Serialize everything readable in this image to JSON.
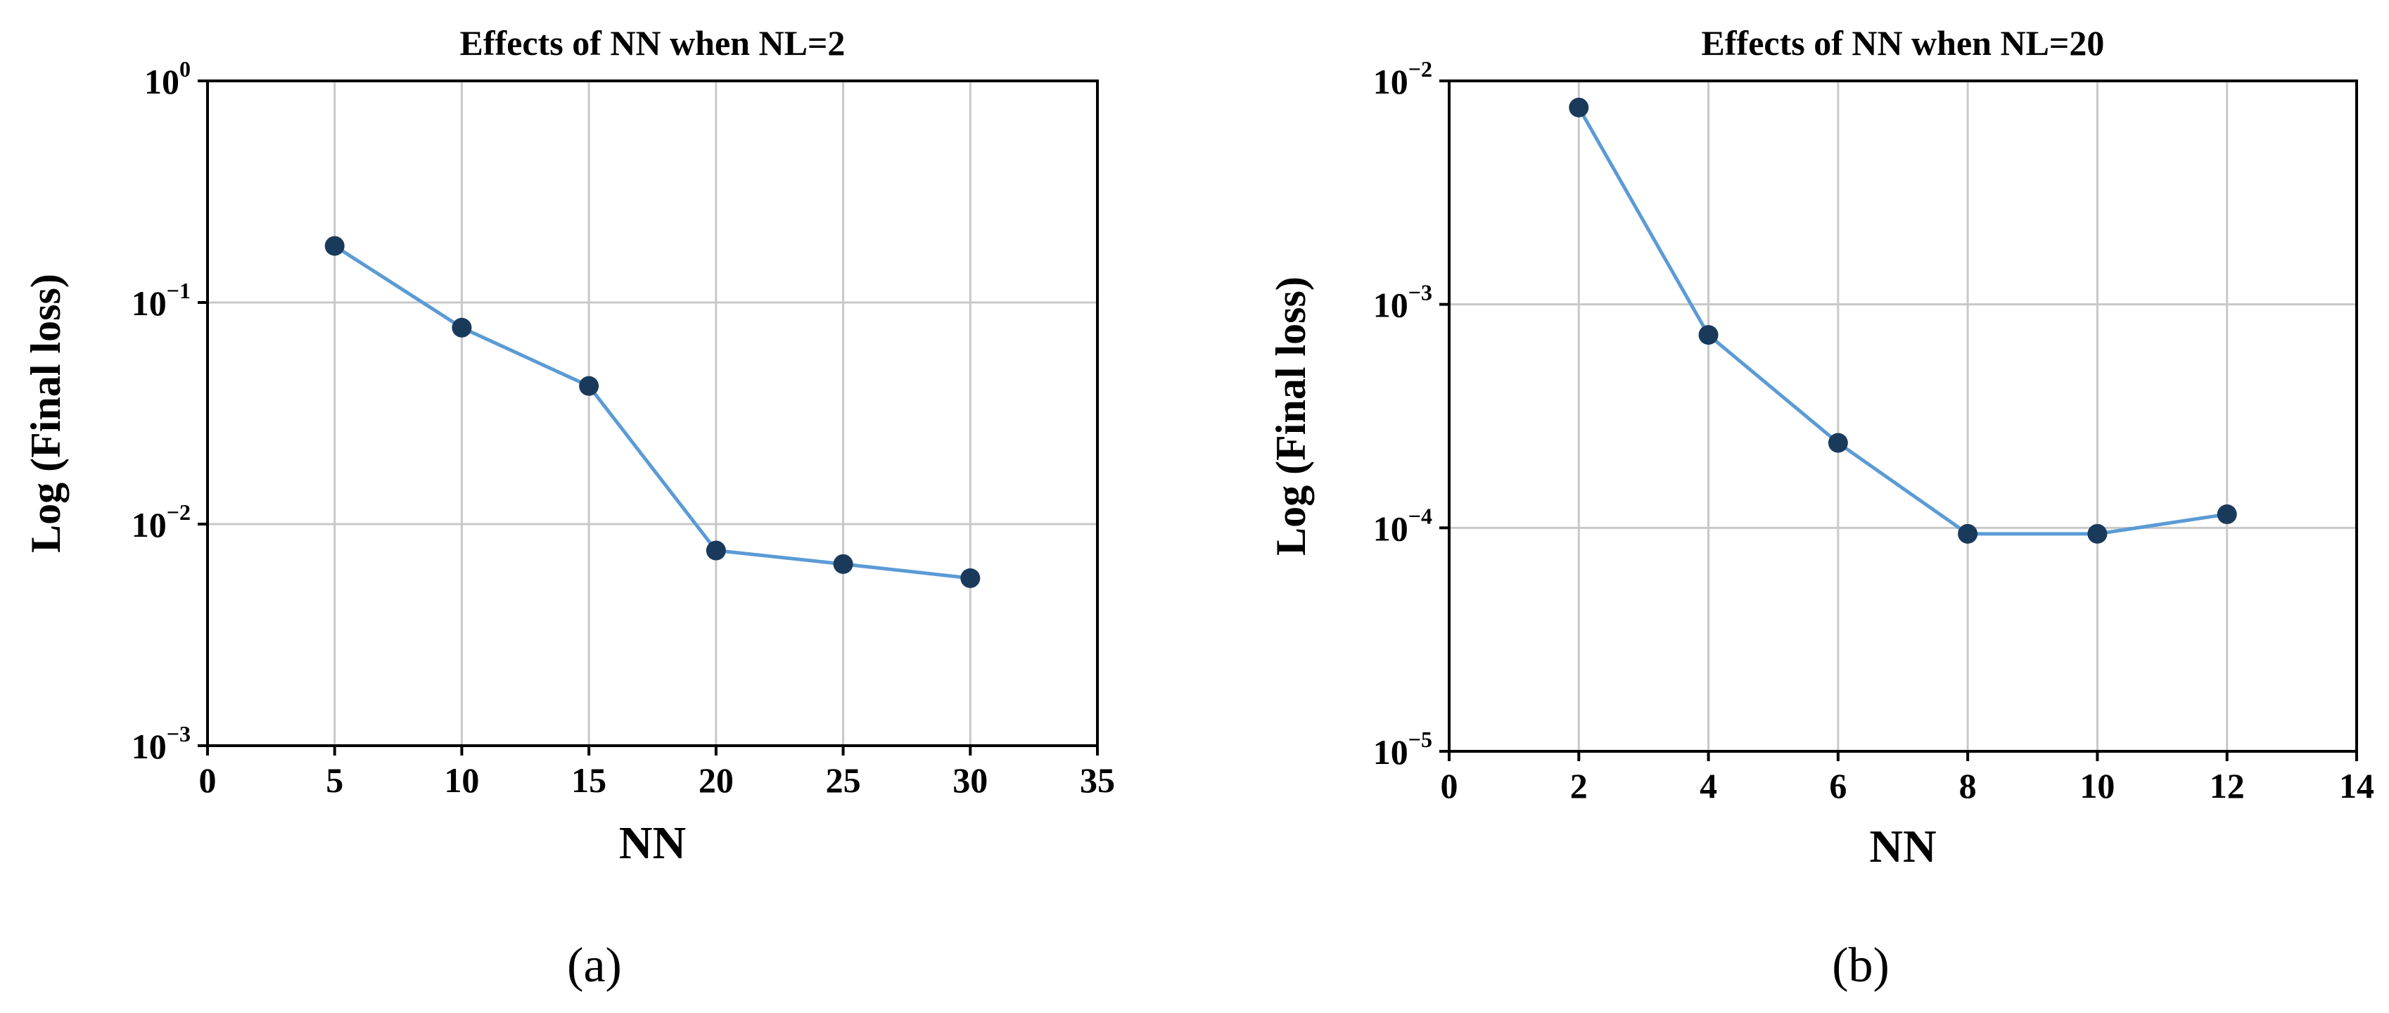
{
  "chart_data": [
    {
      "type": "line",
      "title": "Effects of NN when NL=2",
      "xlabel": "NN",
      "ylabel": "Log (Final loss)",
      "panel_label": "(a)",
      "yscale": "log",
      "xlim": [
        0,
        35
      ],
      "ylim": [
        0.001,
        1
      ],
      "xticks": [
        0,
        5,
        10,
        15,
        20,
        25,
        30,
        35
      ],
      "yticks": [
        {
          "value": 1,
          "base": "10",
          "exp": "0"
        },
        {
          "value": 0.1,
          "base": "10",
          "exp": "−1"
        },
        {
          "value": 0.01,
          "base": "10",
          "exp": "−2"
        },
        {
          "value": 0.001,
          "base": "10",
          "exp": "−3"
        }
      ],
      "grid": true,
      "series": [
        {
          "name": "Final loss",
          "color": "#5b9bd5",
          "marker_color": "#1a3a5c",
          "x": [
            5,
            10,
            15,
            20,
            25,
            30
          ],
          "y": [
            0.18,
            0.077,
            0.042,
            0.0076,
            0.0066,
            0.0057
          ]
        }
      ]
    },
    {
      "type": "line",
      "title": "Effects of NN when NL=20",
      "xlabel": "NN",
      "ylabel": "Log (Final loss)",
      "panel_label": "(b)",
      "yscale": "log",
      "xlim": [
        0,
        14
      ],
      "ylim": [
        1e-05,
        0.01
      ],
      "xticks": [
        0,
        2,
        4,
        6,
        8,
        10,
        12,
        14
      ],
      "yticks": [
        {
          "value": 0.01,
          "base": "10",
          "exp": "−2"
        },
        {
          "value": 0.001,
          "base": "10",
          "exp": "−3"
        },
        {
          "value": 0.0001,
          "base": "10",
          "exp": "−4"
        },
        {
          "value": 1e-05,
          "base": "10",
          "exp": "−5"
        }
      ],
      "grid": true,
      "series": [
        {
          "name": "Final loss",
          "color": "#5b9bd5",
          "marker_color": "#1a3a5c",
          "x": [
            2,
            4,
            6,
            8,
            10,
            12
          ],
          "y": [
            0.0076,
            0.00073,
            0.00024,
            9.4e-05,
            9.4e-05,
            0.000115
          ]
        }
      ]
    }
  ]
}
